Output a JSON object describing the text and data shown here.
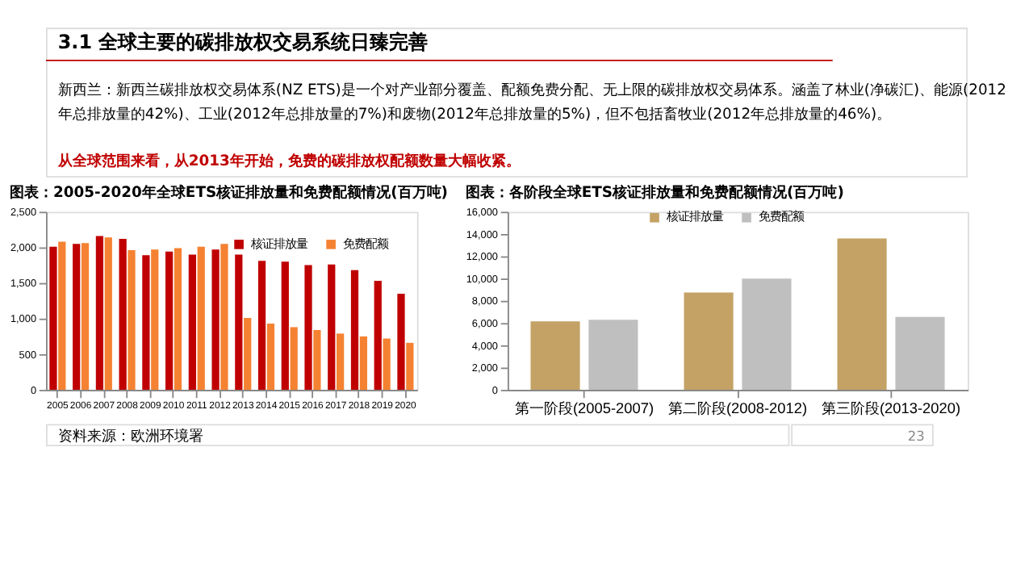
{
  "chart_data": [
    {
      "type": "other",
      "title": "3.1 全球主要的碳排放权交易系统日臻完善",
      "annotations": [
        "新西兰：新西兰碳排放权交易体系(NZ ETS)是一个对产业部分覆盖、配额免费分配、无上限的碳排放权交易体系。涵盖了林业(净碳汇)、能源(2012",
        "年总排放量的42%)、工业(2012年总排放量的7%)和废物(2012年总排放量的5%)，但不包括畜牧业(2012年总排放量的46%)。",
        "从全球范围来看，从2013年开始，免费的碳排放权配额数量大幅收紧。",
        "23"
      ]
    },
    {
      "type": "bar",
      "title": "图表：2005-2020年全球ETS核证排放量和免费配额情况(百万吨)",
      "categories": [
        "2005",
        "2006",
        "2007",
        "2008",
        "2009",
        "2010",
        "2011",
        "2012",
        "2013",
        "2014",
        "2015",
        "2016",
        "2017",
        "2018",
        "2019",
        "2020"
      ],
      "series": [
        {
          "name": "核证排放量",
          "color": "#c00000",
          "values": [
            2010,
            2050,
            2160,
            2120,
            1890,
            1940,
            1900,
            1970,
            1900,
            1810,
            1800,
            1750,
            1760,
            1680,
            1530,
            1350
          ]
        },
        {
          "name": "免费配额",
          "color": "#f58232",
          "values": [
            2080,
            2060,
            2140,
            1960,
            1970,
            1990,
            2010,
            2050,
            1010,
            930,
            880,
            840,
            790,
            750,
            720,
            660
          ]
        }
      ],
      "ylim": [
        0,
        2500
      ],
      "yticks": [
        {
          "value": 0,
          "label": "0"
        },
        {
          "value": 500,
          "label": "500"
        },
        {
          "value": 1000,
          "label": "1,000"
        },
        {
          "value": 1500,
          "label": "1,500"
        },
        {
          "value": 2000,
          "label": "2,000"
        },
        {
          "value": 2500,
          "label": "2,500"
        }
      ],
      "legend": "top right",
      "grid": false,
      "annotations": [
        "资料来源：欧洲环境署"
      ]
    },
    {
      "type": "bar",
      "title": "图表：各阶段全球ETS核证排放量和免费配额情况(百万吨)",
      "categories": [
        "第一阶段(2005-2007)",
        "第二阶段(2008-2012)",
        "第三阶段(2013-2020)"
      ],
      "series": [
        {
          "name": "核证排放量",
          "color": "#c4a265",
          "values": [
            6150,
            8750,
            13600
          ]
        },
        {
          "name": "免费配额",
          "color": "#bfbfbf",
          "values": [
            6300,
            10000,
            6550
          ]
        }
      ],
      "ylim": [
        0,
        16000
      ],
      "yticks": [
        {
          "value": 0,
          "label": "0"
        },
        {
          "value": 2000,
          "label": "2,000"
        },
        {
          "value": 4000,
          "label": "4,000"
        },
        {
          "value": 6000,
          "label": "6,000"
        },
        {
          "value": 8000,
          "label": "8,000"
        },
        {
          "value": 10000,
          "label": "10,000"
        },
        {
          "value": 12000,
          "label": "12,000"
        },
        {
          "value": 14000,
          "label": "14,000"
        },
        {
          "value": 16000,
          "label": "16,000"
        }
      ],
      "legend": "top",
      "grid": false
    }
  ]
}
